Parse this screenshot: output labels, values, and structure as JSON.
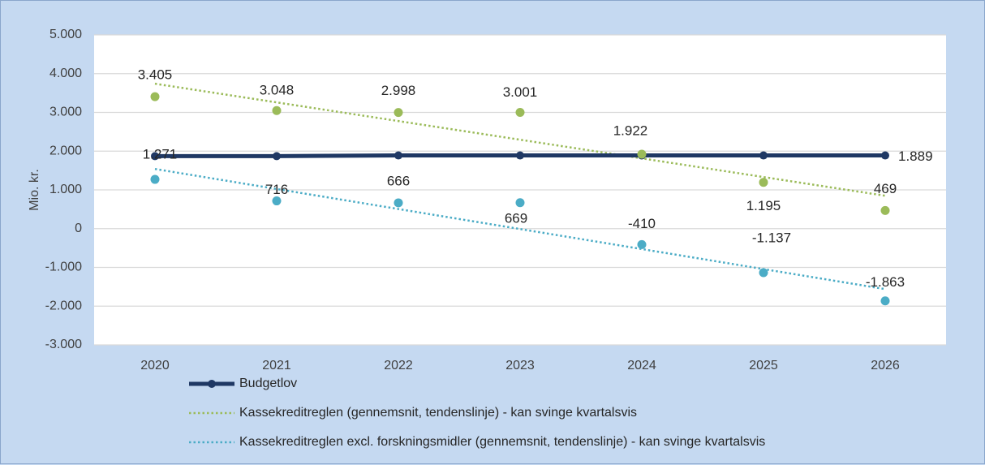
{
  "chart_data": {
    "type": "line",
    "ylabel": "Mio. kr.",
    "ylim": [
      -3000,
      5000
    ],
    "ytick_step": 1000,
    "ytick_labels": [
      "5.000",
      "4.000",
      "3.000",
      "2.000",
      "1.000",
      "0",
      "-1.000",
      "-2.000",
      "-3.000"
    ],
    "categories": [
      "2020",
      "2021",
      "2022",
      "2023",
      "2024",
      "2025",
      "2026"
    ],
    "series": [
      {
        "name": "Budgetlov",
        "style": "solid-markers",
        "color": "#1f3864",
        "values": [
          1871,
          1871,
          1889,
          1889,
          1889,
          1889,
          1889
        ],
        "labels": [
          null,
          null,
          null,
          null,
          null,
          null,
          "1.889"
        ]
      },
      {
        "name": "Kassekreditreglen (gennemsnit, tendenslinje) - kan svinge kvartalsvis",
        "style": "points-trend",
        "color": "#9bbb59",
        "values": [
          3405,
          3048,
          2998,
          3001,
          1922,
          1195,
          469
        ],
        "labels": [
          "3.405",
          "3.048",
          "2.998",
          "3.001",
          "1.922",
          "1.195",
          "469"
        ],
        "trend": [
          3740,
          850
        ]
      },
      {
        "name": "Kassekreditreglen  excl. forskningsmidler (gennemsnit, tendenslinje) - kan svinge kvartalsvis",
        "style": "points-trend",
        "color": "#4bacc6",
        "values": [
          1271,
          716,
          666,
          669,
          -410,
          -1137,
          -1863
        ],
        "labels": [
          "1.271",
          "716",
          "666",
          "669",
          "-410",
          "-1.137",
          "-1.863"
        ],
        "trend": [
          1540,
          -1560
        ]
      }
    ]
  }
}
